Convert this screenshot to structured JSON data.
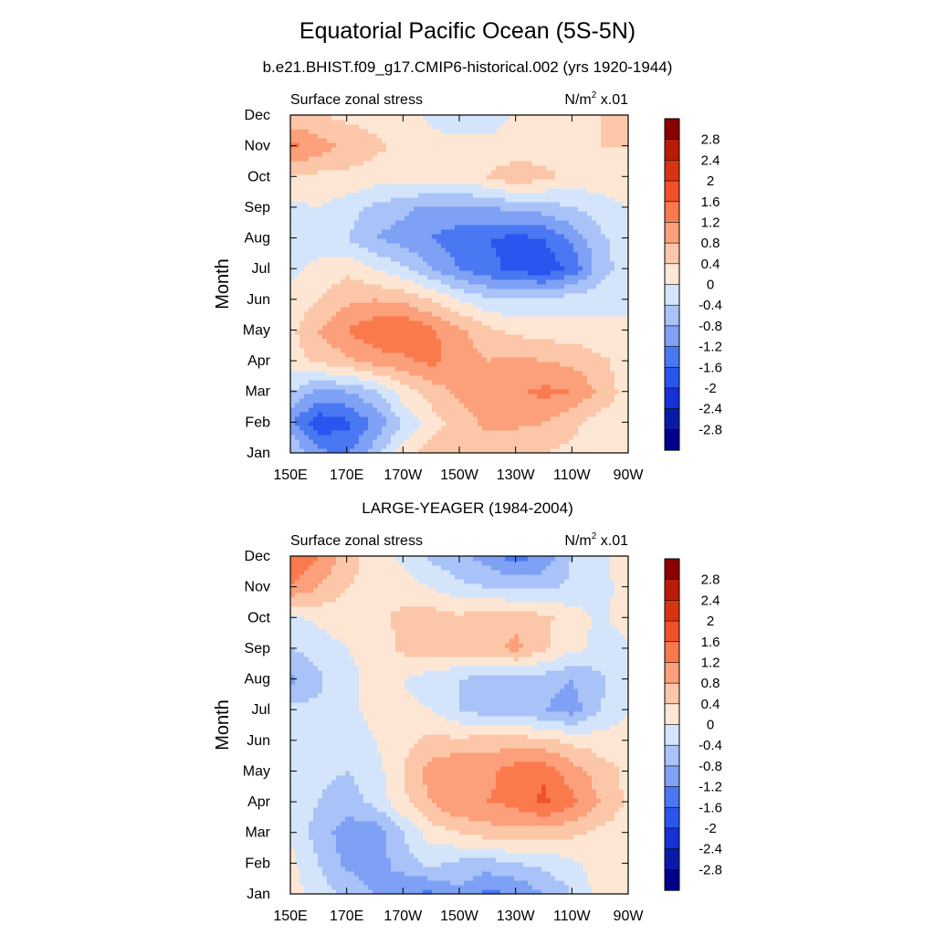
{
  "page": {
    "title": "Equatorial Pacific Ocean (5S-5N)",
    "panel1_title": "b.e21.BHIST.f09_g17.CMIP6-historical.002 (yrs 1920-1944)",
    "panel2_title": "LARGE-YEAGER (1984-2004)"
  },
  "colors": {
    "levels": [
      -2.8,
      -2.4,
      -2,
      -1.6,
      -1.2,
      -0.8,
      -0.4,
      0,
      0.4,
      0.8,
      1.2,
      1.6,
      2,
      2.4,
      2.8
    ],
    "fills": [
      "#00008b",
      "#0a1aa8",
      "#1432d8",
      "#2a55ee",
      "#4a78f2",
      "#7ea1f5",
      "#a9c3f8",
      "#d4e5fb",
      "#fde7d4",
      "#fcc7a8",
      "#fba07a",
      "#fa7a4e",
      "#f0502a",
      "#d93412",
      "#b81c08",
      "#8b0000"
    ]
  },
  "chart_data": [
    {
      "type": "heatmap",
      "subtitle_left": "Surface zonal stress",
      "units": "N/m",
      "units_sup": "2",
      "units_scale": " x.01",
      "ylabel": "Month",
      "x_ticks": [
        "150E",
        "170E",
        "170W",
        "150W",
        "130W",
        "110W",
        "90W"
      ],
      "y_ticks": [
        "Jan",
        "Feb",
        "Mar",
        "Apr",
        "May",
        "Jun",
        "Jul",
        "Aug",
        "Sep",
        "Oct",
        "Nov",
        "Dec"
      ],
      "colorbar_labels": [
        "2.8",
        "2.4",
        "2",
        "1.6",
        "1.2",
        "0.8",
        "0.4",
        "0",
        "-0.4",
        "-0.8",
        "-1.2",
        "-1.6",
        "-2",
        "-2.4",
        "-2.8"
      ],
      "field_values": [
        [
          -0.3,
          -1.1,
          -1.3,
          -0.6,
          0.2,
          0.6,
          0.8,
          0.6,
          0.4,
          0.4,
          0.3,
          0.2,
          0.2
        ],
        [
          -1.1,
          -1.9,
          -1.7,
          -1.1,
          -0.4,
          0.2,
          0.6,
          0.9,
          0.9,
          0.8,
          0.5,
          0.2,
          0.2
        ],
        [
          -0.4,
          -0.9,
          -0.8,
          -0.5,
          0.2,
          0.6,
          0.9,
          1.0,
          1.1,
          1.3,
          1.2,
          0.7,
          0.2
        ],
        [
          0.2,
          0.5,
          0.7,
          1.0,
          1.1,
          1.3,
          1.0,
          0.8,
          0.9,
          0.8,
          0.7,
          0.5,
          0.2
        ],
        [
          0.3,
          0.8,
          1.2,
          1.5,
          1.6,
          1.3,
          0.9,
          0.5,
          0.3,
          0.2,
          0.2,
          0.1,
          0.1
        ],
        [
          0.1,
          0.4,
          0.7,
          0.8,
          0.7,
          0.4,
          0.0,
          -0.3,
          -0.4,
          -0.3,
          -0.2,
          -0.1,
          -0.1
        ],
        [
          -0.1,
          0.1,
          0.3,
          0.0,
          -0.3,
          -0.8,
          -1.2,
          -1.5,
          -1.7,
          -1.9,
          -1.5,
          -0.6,
          -0.2
        ],
        [
          -0.2,
          -0.2,
          -0.4,
          -0.8,
          -1.0,
          -1.2,
          -1.4,
          -1.6,
          -1.7,
          -1.6,
          -1.1,
          -0.5,
          -0.1
        ],
        [
          -0.1,
          0.0,
          -0.2,
          -0.5,
          -0.7,
          -0.9,
          -0.9,
          -0.8,
          -0.7,
          -0.6,
          -0.4,
          -0.2,
          0.0
        ],
        [
          0.4,
          0.3,
          0.3,
          0.2,
          0.2,
          0.2,
          0.2,
          0.4,
          0.7,
          0.5,
          0.3,
          0.2,
          0.3
        ],
        [
          1.3,
          1.0,
          0.7,
          0.5,
          0.3,
          0.2,
          0.2,
          0.2,
          0.1,
          0.2,
          0.3,
          0.4,
          0.4
        ],
        [
          0.5,
          0.4,
          0.3,
          0.2,
          0.2,
          -0.1,
          -0.4,
          -0.3,
          0.1,
          0.2,
          0.3,
          0.4,
          0.4
        ]
      ]
    },
    {
      "type": "heatmap",
      "subtitle_left": "Surface zonal stress",
      "units": "N/m",
      "units_sup": "2",
      "units_scale": " x.01",
      "ylabel": "Month",
      "x_ticks": [
        "150E",
        "170E",
        "170W",
        "150W",
        "130W",
        "110W",
        "90W"
      ],
      "y_ticks": [
        "Jan",
        "Feb",
        "Mar",
        "Apr",
        "May",
        "Jun",
        "Jul",
        "Aug",
        "Sep",
        "Oct",
        "Nov",
        "Dec"
      ],
      "colorbar_labels": [
        "2.8",
        "2.4",
        "2",
        "1.6",
        "1.2",
        "0.8",
        "0.4",
        "0",
        "-0.4",
        "-0.8",
        "-1.2",
        "-1.6",
        "-2",
        "-2.4",
        "-2.8"
      ],
      "field_values": [
        [
          0.2,
          -0.2,
          -0.5,
          -0.8,
          -1.2,
          -1.3,
          -0.9,
          -1.3,
          -1.2,
          -0.8,
          -0.4,
          0.2,
          0.2
        ],
        [
          0.1,
          -0.4,
          -0.9,
          -1.0,
          -0.6,
          -0.3,
          -0.5,
          -0.6,
          -0.4,
          -0.3,
          -0.1,
          0.2,
          0.2
        ],
        [
          0.0,
          -0.6,
          -1.0,
          -1.1,
          -0.4,
          0.2,
          0.4,
          0.6,
          0.7,
          0.6,
          0.5,
          0.3,
          0.2
        ],
        [
          -0.1,
          -0.4,
          -0.6,
          -0.3,
          0.3,
          0.8,
          1.2,
          1.2,
          1.3,
          1.7,
          1.3,
          0.8,
          0.3
        ],
        [
          -0.1,
          -0.3,
          -0.4,
          -0.2,
          0.4,
          1.0,
          1.2,
          1.1,
          1.4,
          1.5,
          1.0,
          0.6,
          0.3
        ],
        [
          -0.2,
          -0.2,
          -0.2,
          0.0,
          0.3,
          0.5,
          0.5,
          0.6,
          0.6,
          0.5,
          0.3,
          0.2,
          0.2
        ],
        [
          -0.3,
          -0.3,
          -0.1,
          0.1,
          0.1,
          0.0,
          -0.4,
          -0.6,
          -0.6,
          -0.8,
          -1.0,
          -0.4,
          0.0
        ],
        [
          -0.9,
          -0.5,
          -0.1,
          0.1,
          0.0,
          -0.2,
          -0.4,
          -0.6,
          -0.5,
          -0.6,
          -0.8,
          -0.5,
          -0.1
        ],
        [
          -0.4,
          -0.2,
          0.0,
          0.1,
          0.5,
          0.6,
          0.6,
          0.7,
          0.9,
          0.5,
          0.1,
          -0.1,
          -0.1
        ],
        [
          -0.1,
          0.1,
          0.2,
          0.3,
          0.5,
          0.6,
          0.5,
          0.6,
          0.7,
          0.5,
          0.2,
          -0.1,
          0.2
        ],
        [
          1.2,
          0.8,
          0.4,
          0.3,
          0.2,
          0.0,
          -0.3,
          -0.4,
          -0.5,
          -0.5,
          -0.3,
          -0.1,
          0.1
        ],
        [
          1.6,
          1.2,
          0.6,
          0.2,
          -0.1,
          -0.5,
          -0.7,
          -1.0,
          -1.4,
          -1.1,
          -0.4,
          -0.1,
          0.2
        ]
      ]
    }
  ]
}
